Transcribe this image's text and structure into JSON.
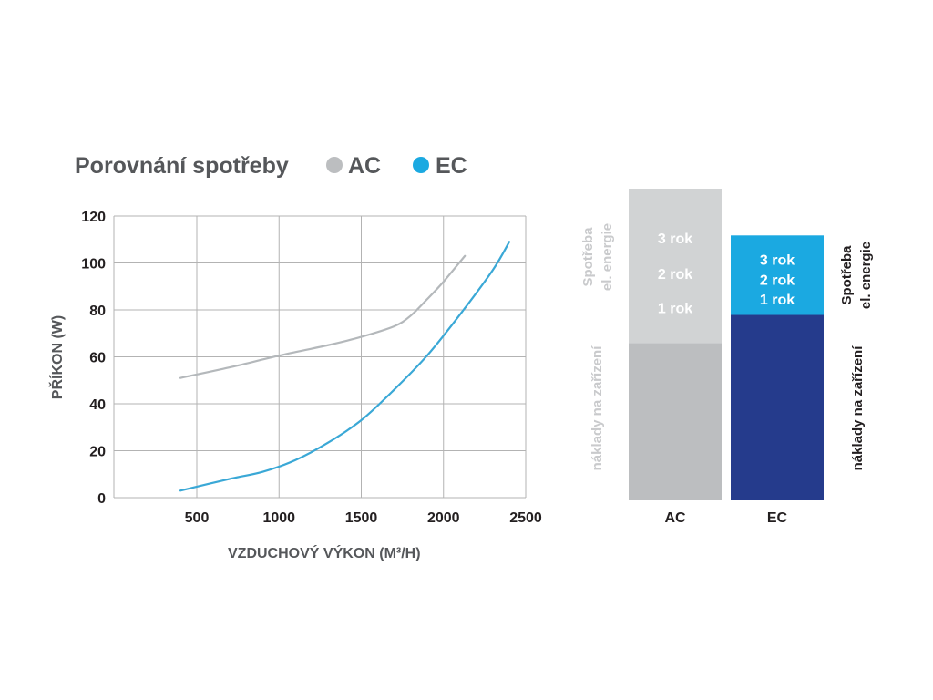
{
  "header": {
    "title": "Porovnání spotřeby",
    "legend": [
      {
        "label": "AC",
        "color": "#bcbec0"
      },
      {
        "label": "EC",
        "color": "#1ba9e1"
      }
    ]
  },
  "chart_data": [
    {
      "type": "line",
      "title": "Porovnání spotřeby",
      "xlabel": "VZDUCHOVÝ VÝKON (M³/H)",
      "ylabel": "PŘÍKON (W)",
      "xlim": [
        500,
        2500
      ],
      "ylim": [
        0,
        120
      ],
      "x_ticks": [
        500,
        1000,
        1500,
        2000,
        2500
      ],
      "y_ticks": [
        0,
        20,
        40,
        60,
        80,
        100,
        120
      ],
      "grid": true,
      "legend_position": "top",
      "series": [
        {
          "name": "AC",
          "color": "#b4b8bb",
          "points": [
            [
              400,
              51
            ],
            [
              700,
              55.5
            ],
            [
              1000,
              60.5
            ],
            [
              1300,
              65
            ],
            [
              1500,
              68.5
            ],
            [
              1700,
              73
            ],
            [
              1800,
              77.5
            ],
            [
              1900,
              84.5
            ],
            [
              2000,
              92
            ],
            [
              2130,
              103
            ]
          ]
        },
        {
          "name": "EC",
          "color": "#3aa8d6",
          "points": [
            [
              400,
              3
            ],
            [
              700,
              8
            ],
            [
              900,
              11
            ],
            [
              1100,
              16
            ],
            [
              1300,
              23.5
            ],
            [
              1500,
              33
            ],
            [
              1700,
              46
            ],
            [
              1900,
              60.5
            ],
            [
              2100,
              78
            ],
            [
              2300,
              97
            ],
            [
              2400,
              109
            ]
          ]
        }
      ]
    },
    {
      "type": "bar",
      "stacked": true,
      "categories": [
        "AC",
        "EC"
      ],
      "series": [
        {
          "name": "náklady na zařízení",
          "colors": [
            "#bcbec0",
            "#253b8c"
          ],
          "values": [
            0.505,
            0.595
          ]
        },
        {
          "name": "Spotřeba el. energie",
          "colors": [
            "#d1d3d4",
            "#1ba9e1"
          ],
          "values": [
            0.495,
            0.255
          ]
        }
      ],
      "segment_labels": [
        [
          "3 rok",
          "2 rok",
          "1 rok"
        ],
        [
          "3 rok",
          "2 rok",
          "1 rok"
        ]
      ],
      "side_labels": {
        "energy": [
          "Spotřeba",
          "el. energie"
        ],
        "equipment": "náklady na zařízení"
      }
    }
  ]
}
